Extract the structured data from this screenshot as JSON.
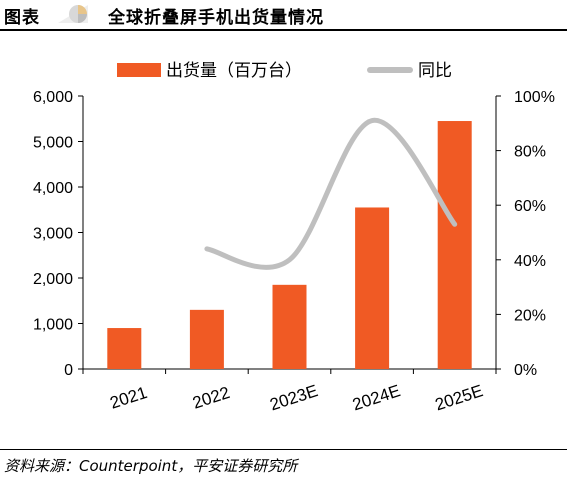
{
  "header": {
    "label": "图表",
    "title": "全球折叠屏手机出货量情况"
  },
  "source": "资料来源：Counterpoint，平安证券研究所",
  "chart_data": {
    "type": "bar",
    "title": "",
    "categories": [
      "2021",
      "2022",
      "2023E",
      "2024E",
      "2025E"
    ],
    "series": [
      {
        "name": "出货量（百万台）",
        "type": "bar",
        "axis": "left",
        "color": "#F05A24",
        "values": [
          900,
          1300,
          1850,
          3550,
          5450
        ]
      },
      {
        "name": "同比",
        "type": "line",
        "axis": "right",
        "color": "#BFBFBF",
        "values": [
          null,
          44,
          40,
          91,
          53
        ]
      }
    ],
    "y_left": {
      "min": 0,
      "max": 6000,
      "ticks": [
        0,
        1000,
        2000,
        3000,
        4000,
        5000,
        6000
      ],
      "tick_labels": [
        "0",
        "1,000",
        "2,000",
        "3,000",
        "4,000",
        "5,000",
        "6,000"
      ]
    },
    "y_right": {
      "min": 0,
      "max": 100,
      "ticks": [
        0,
        20,
        40,
        60,
        80,
        100
      ],
      "tick_labels": [
        "0%",
        "20%",
        "40%",
        "60%",
        "80%",
        "100%"
      ]
    },
    "legend_position": "top",
    "grid": false
  }
}
